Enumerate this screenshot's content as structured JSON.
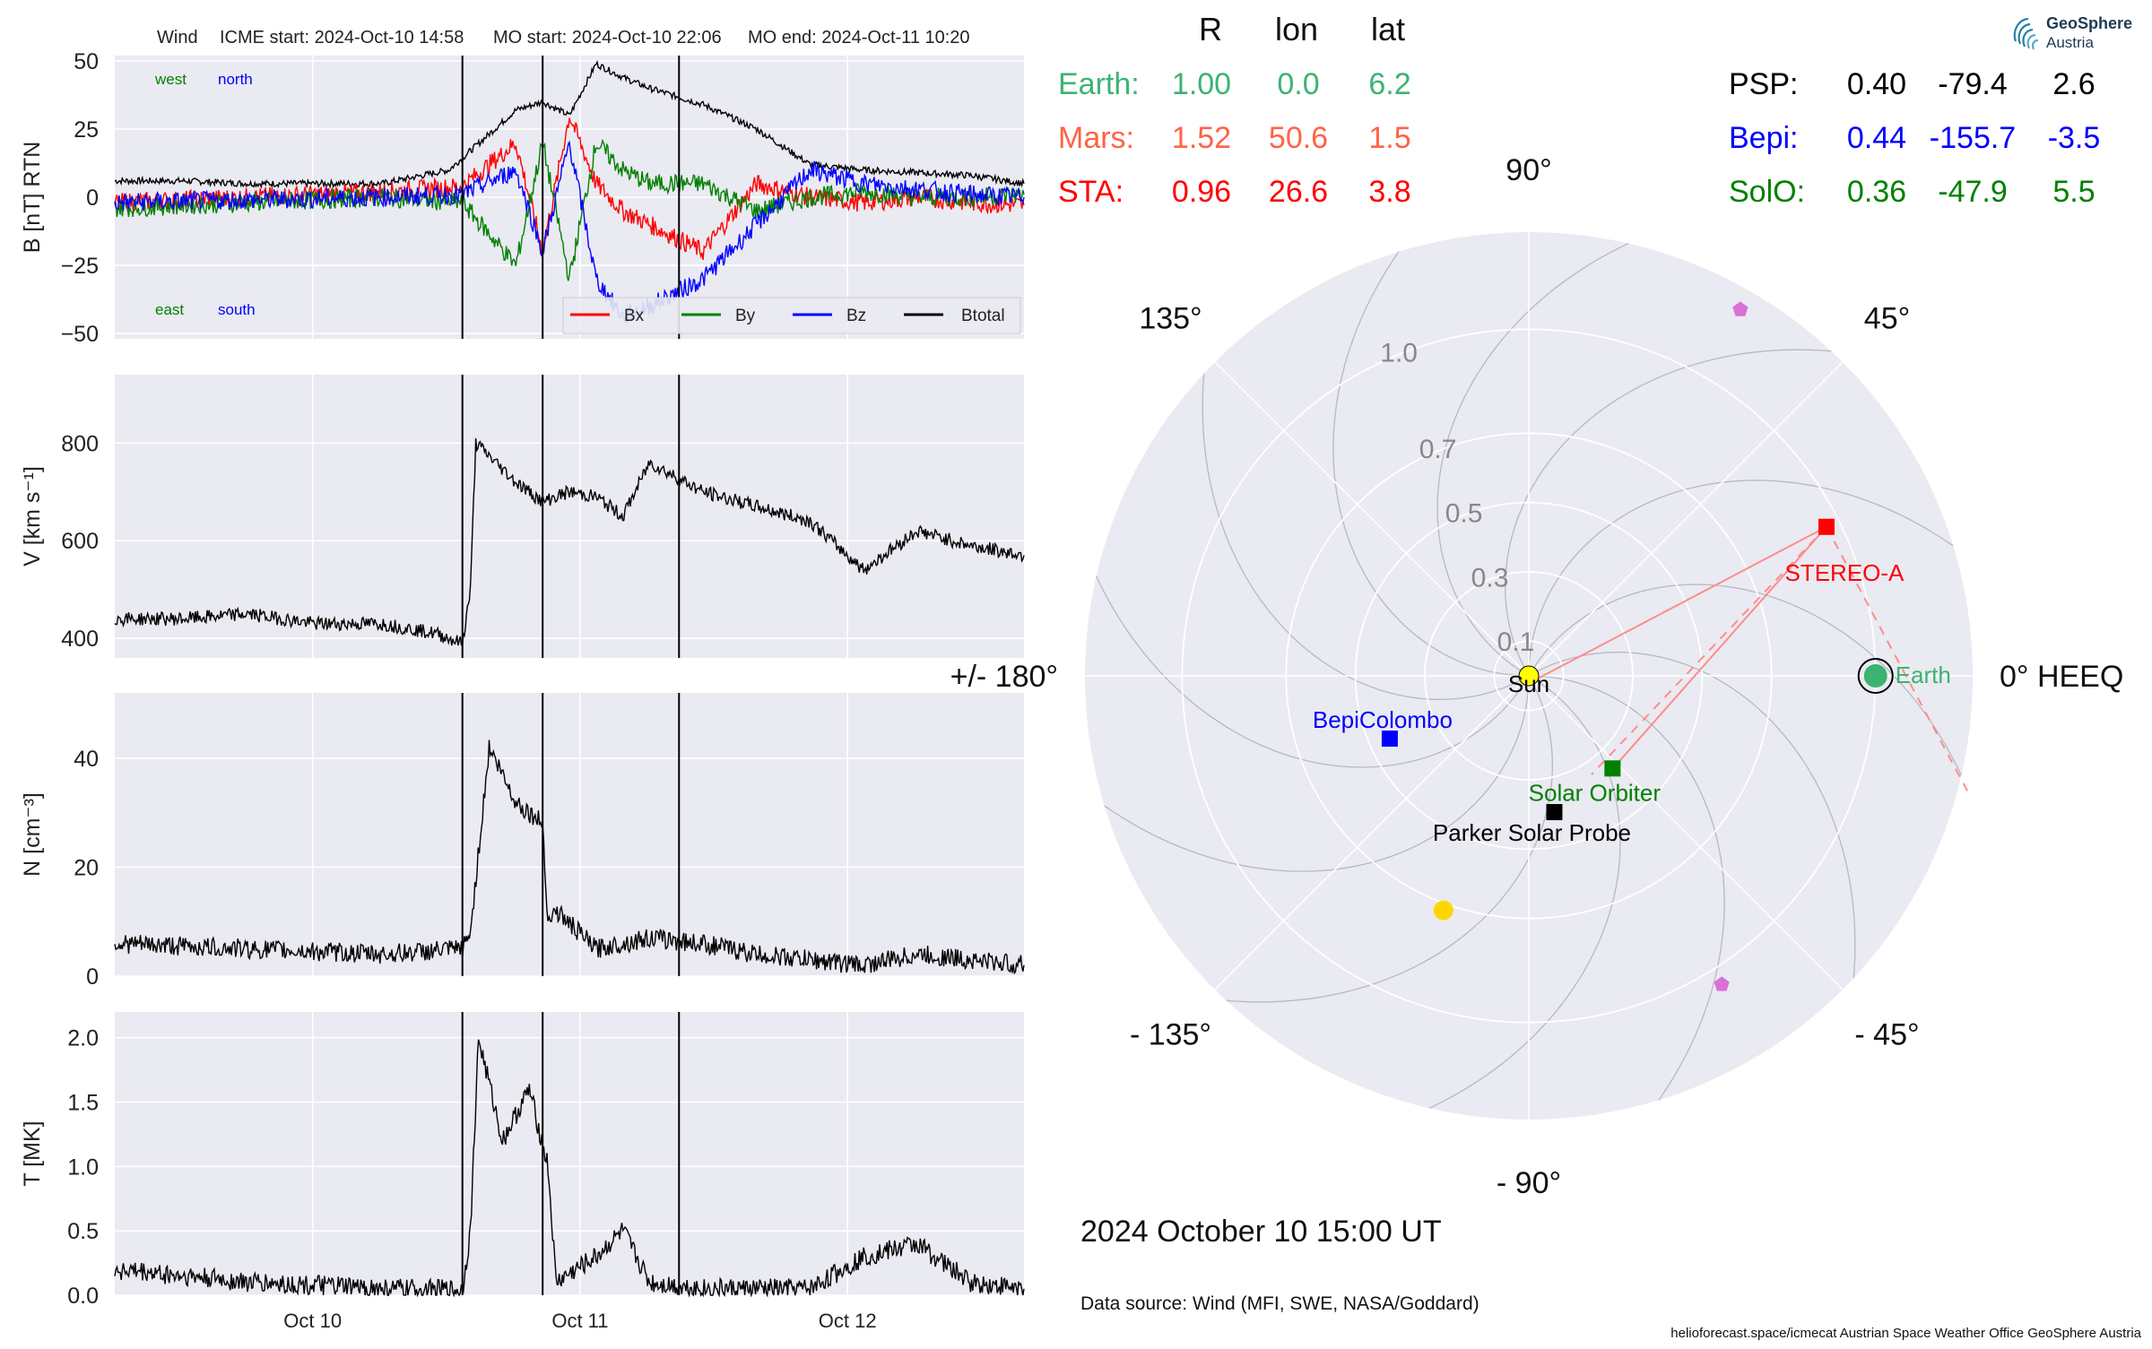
{
  "header": {
    "spacecraft": "Wind",
    "icme_start": "ICME start: 2024-Oct-10 14:58",
    "mo_start": "MO start: 2024-Oct-10 22:06",
    "mo_end": "MO end: 2024-Oct-11 10:20"
  },
  "logo": {
    "name": "GeoSphere",
    "sub": "Austria"
  },
  "footer": {
    "datetime": "2024 October 10  15:00 UT",
    "source": "Data source: Wind (MFI, SWE, NASA/Goddard)",
    "credits": "helioforecast.space/icmecat   Austrian Space Weather Office   GeoSphere Austria"
  },
  "position_table": {
    "headers": [
      "R",
      "lon",
      "lat"
    ],
    "left_rows": [
      {
        "name": "Earth:",
        "r": "1.00",
        "lon": "0.0",
        "lat": "6.2",
        "color": "#3cb371"
      },
      {
        "name": "Mars:",
        "r": "1.52",
        "lon": "50.6",
        "lat": "1.5",
        "color": "#ff6347"
      },
      {
        "name": "STA:",
        "r": "0.96",
        "lon": "26.6",
        "lat": "3.8",
        "color": "#ff0000"
      }
    ],
    "right_rows": [
      {
        "name": "PSP:",
        "r": "0.40",
        "lon": "-79.4",
        "lat": "2.6",
        "color": "#000000"
      },
      {
        "name": "Bepi:",
        "r": "0.44",
        "lon": "-155.7",
        "lat": "-3.5",
        "color": "#0000ff"
      },
      {
        "name": "SolO:",
        "r": "0.36",
        "lon": "-47.9",
        "lat": "5.5",
        "color": "#008000"
      }
    ]
  },
  "chart_data": [
    {
      "type": "line",
      "panel": "magnetic field",
      "ylabel": "B [nT] RTN",
      "ylim": [
        -52,
        52
      ],
      "yticks": [
        "50",
        "25",
        "0",
        "−25",
        "−50"
      ],
      "ytick_values": [
        50,
        25,
        0,
        -25,
        -50
      ],
      "corner_labels": {
        "west": "west",
        "north": "north",
        "east": "east",
        "south": "south"
      },
      "legend": [
        "Bx",
        "By",
        "Bz",
        "Btotal"
      ],
      "legend_position": "lower-right",
      "series_colors": {
        "Bx": "#ff0000",
        "By": "#008000",
        "Bz": "#0000ff",
        "Btotal": "#000000"
      },
      "series": [
        {
          "name": "Btotal",
          "x": [
            0,
            0.25,
            0.5,
            0.75,
            1.0,
            1.25,
            1.5,
            1.6,
            1.7,
            1.8,
            1.9,
            2.0,
            2.2,
            2.4,
            2.6,
            2.8,
            3.0,
            3.2,
            3.4
          ],
          "values": [
            6,
            6,
            5,
            5,
            5,
            10,
            32,
            35,
            30,
            49,
            44,
            40,
            34,
            25,
            12,
            10,
            9,
            8,
            5
          ]
        },
        {
          "name": "Bx",
          "x": [
            0,
            0.5,
            1.0,
            1.3,
            1.5,
            1.6,
            1.7,
            1.8,
            1.9,
            2.0,
            2.2,
            2.4,
            2.6,
            2.8,
            3.0,
            3.2,
            3.4
          ],
          "values": [
            -2,
            0,
            2,
            4,
            20,
            -20,
            30,
            5,
            -5,
            -10,
            -20,
            5,
            0,
            -2,
            0,
            -2,
            -3
          ]
        },
        {
          "name": "By",
          "x": [
            0,
            0.5,
            1.0,
            1.3,
            1.5,
            1.6,
            1.7,
            1.8,
            1.9,
            2.0,
            2.2,
            2.4,
            2.6,
            2.8,
            3.0,
            3.2,
            3.4
          ],
          "values": [
            -4,
            -2,
            0,
            -2,
            -25,
            20,
            -30,
            20,
            10,
            5,
            5,
            -5,
            0,
            2,
            0,
            0,
            1
          ]
        },
        {
          "name": "Bz",
          "x": [
            0,
            0.5,
            1.0,
            1.3,
            1.5,
            1.6,
            1.7,
            1.8,
            1.9,
            2.0,
            2.2,
            2.4,
            2.6,
            2.8,
            3.0,
            3.2,
            3.4
          ],
          "values": [
            -2,
            -1,
            0,
            1,
            10,
            -20,
            20,
            -30,
            -44,
            -40,
            -30,
            -10,
            10,
            5,
            3,
            1,
            0
          ]
        }
      ]
    },
    {
      "type": "line",
      "panel": "speed",
      "ylabel": "V [km s⁻¹]",
      "ylim": [
        360,
        940
      ],
      "yticks": [
        "800",
        "600",
        "400"
      ],
      "ytick_values": [
        800,
        600,
        400
      ],
      "series": [
        {
          "name": "V",
          "x": [
            0,
            0.25,
            0.5,
            0.75,
            1.0,
            1.2,
            1.3,
            1.33,
            1.35,
            1.5,
            1.6,
            1.7,
            1.8,
            1.9,
            2.0,
            2.2,
            2.4,
            2.6,
            2.8,
            3.0,
            3.2,
            3.4
          ],
          "values": [
            440,
            440,
            450,
            430,
            430,
            410,
            390,
            500,
            800,
            720,
            680,
            700,
            690,
            650,
            760,
            700,
            670,
            640,
            540,
            620,
            590,
            570
          ]
        }
      ]
    },
    {
      "type": "line",
      "panel": "density",
      "ylabel": "N [cm⁻³]",
      "ylim": [
        0,
        52
      ],
      "yticks": [
        "40",
        "20",
        "0"
      ],
      "ytick_values": [
        40,
        20,
        0
      ],
      "series": [
        {
          "name": "N",
          "x": [
            0,
            0.5,
            1.0,
            1.3,
            1.33,
            1.4,
            1.5,
            1.6,
            1.62,
            1.65,
            1.8,
            2.0,
            2.2,
            2.4,
            2.6,
            2.8,
            3.0,
            3.2,
            3.4
          ],
          "values": [
            6,
            5,
            4,
            5,
            8,
            42,
            32,
            28,
            10,
            12,
            5,
            7,
            6,
            4,
            3,
            2,
            4,
            3,
            2
          ]
        }
      ]
    },
    {
      "type": "line",
      "panel": "temperature",
      "ylabel": "T [MK]",
      "ylim": [
        0,
        2.2
      ],
      "yticks": [
        "2.0",
        "1.5",
        "1.0",
        "0.5",
        "0.0"
      ],
      "ytick_values": [
        2.0,
        1.5,
        1.0,
        0.5,
        0.0
      ],
      "series": [
        {
          "name": "T",
          "x": [
            0,
            0.5,
            1.0,
            1.3,
            1.33,
            1.36,
            1.45,
            1.55,
            1.62,
            1.65,
            1.8,
            1.9,
            2.0,
            2.2,
            2.4,
            2.6,
            2.8,
            3.0,
            3.2,
            3.4
          ],
          "values": [
            0.2,
            0.1,
            0.05,
            0.04,
            0.5,
            2.0,
            1.2,
            1.6,
            1.0,
            0.1,
            0.3,
            0.5,
            0.1,
            0.05,
            0.05,
            0.05,
            0.3,
            0.4,
            0.1,
            0.05
          ]
        }
      ]
    },
    {
      "type": "scatter",
      "panel": "polar position plot",
      "angle_labels": [
        {
          "text": "0° HEEQ",
          "deg": 0
        },
        {
          "text": "45°",
          "deg": 45
        },
        {
          "text": "90°",
          "deg": 90
        },
        {
          "text": "135°",
          "deg": 135
        },
        {
          "text": "+/- 180°",
          "deg": 180
        },
        {
          "text": "- 135°",
          "deg": -135
        },
        {
          "text": "- 90°",
          "deg": -90
        },
        {
          "text": "- 45°",
          "deg": -45
        }
      ],
      "radial_ticks": [
        "0.1",
        "0.3",
        "0.5",
        "0.7",
        "1.0"
      ],
      "radial_values": [
        0.1,
        0.3,
        0.5,
        0.7,
        1.0
      ],
      "bodies": [
        {
          "label": "Sun",
          "r": 0.0,
          "lon": 0.0,
          "color": "#ffff00",
          "shape": "circle"
        },
        {
          "label": "Earth",
          "r": 1.0,
          "lon": 0.0,
          "color": "#3cb371",
          "shape": "circle"
        },
        {
          "label": "STEREO-A",
          "r": 0.96,
          "lon": 26.6,
          "color": "#ff0000",
          "shape": "square"
        },
        {
          "label": "Solar Orbiter",
          "r": 0.36,
          "lon": -47.9,
          "color": "#008000",
          "shape": "square"
        },
        {
          "label": "Parker Solar Probe",
          "r": 0.4,
          "lon": -79.4,
          "color": "#000000",
          "shape": "square"
        },
        {
          "label": "BepiColombo",
          "r": 0.44,
          "lon": -155.7,
          "color": "#0000ff",
          "shape": "square"
        }
      ],
      "planets": [
        {
          "name": "Mars",
          "r": 1.52,
          "lon": 50.6,
          "color": "#ff6347"
        }
      ],
      "unlabeled_markers": [
        {
          "r": 1.22,
          "lon": 60,
          "color": "#da70d6",
          "shape": "pentagon"
        },
        {
          "r": 1.05,
          "lon": -58,
          "color": "#da70d6",
          "shape": "pentagon"
        },
        {
          "r": 0.72,
          "lon": -110,
          "color": "#ffd700",
          "shape": "circle"
        }
      ],
      "rmax": 1.28
    }
  ]
}
